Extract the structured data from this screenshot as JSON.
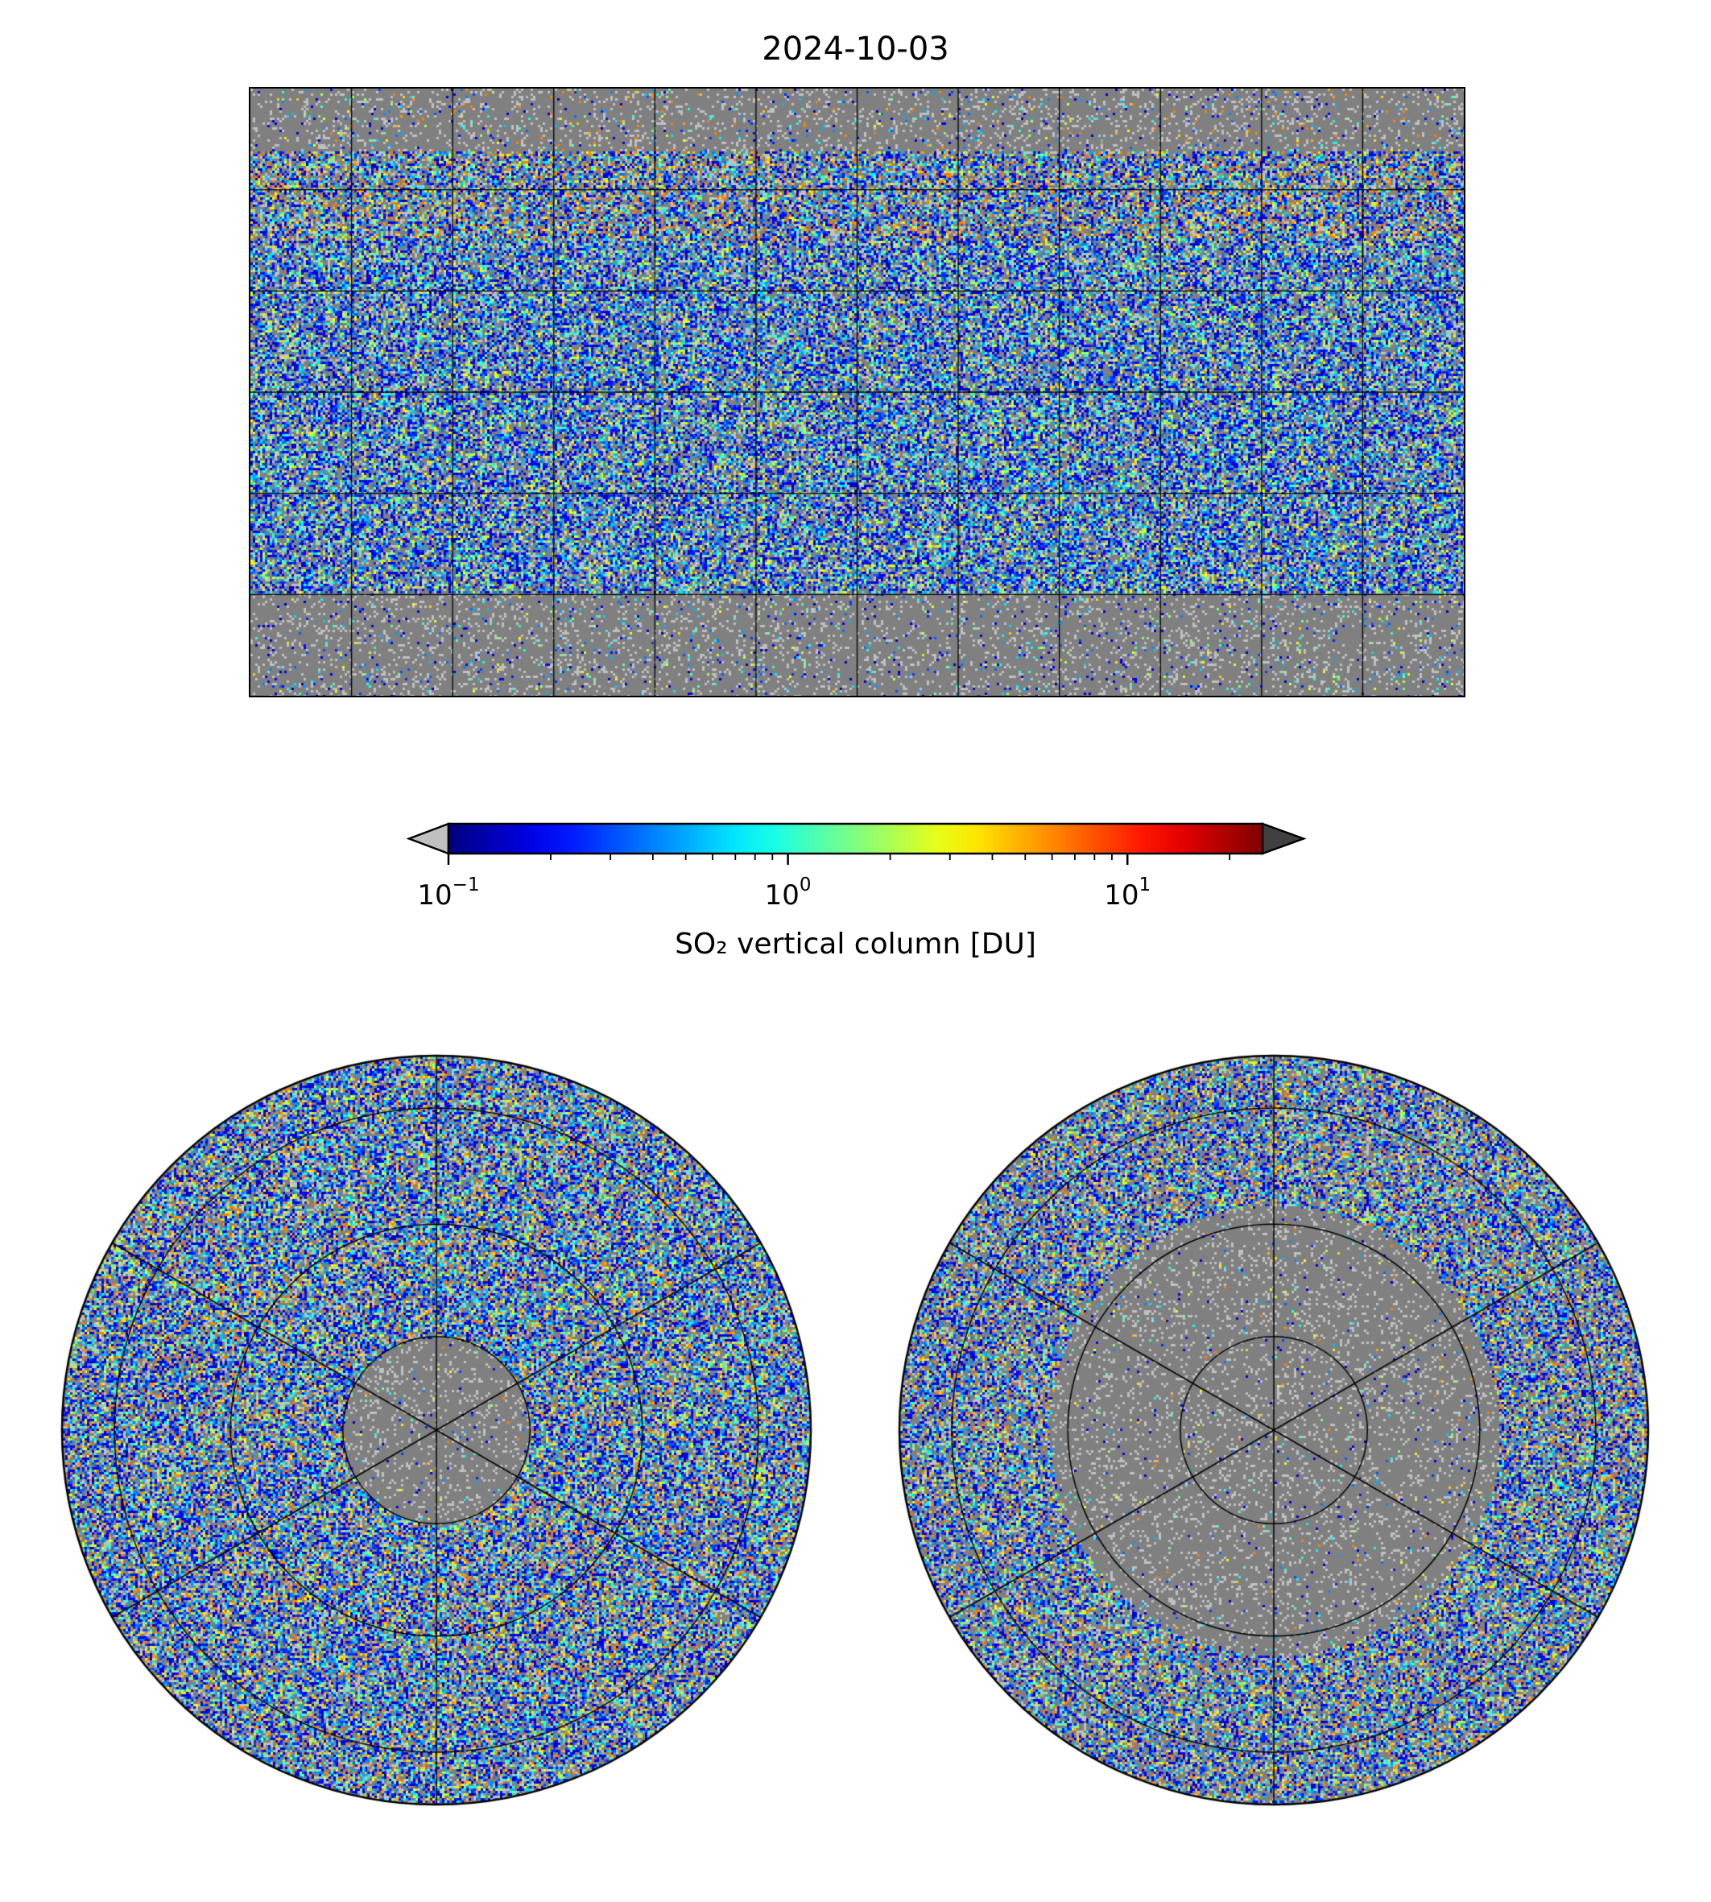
{
  "title": "2024-10-03",
  "colorbar": {
    "label": "SO₂ vertical column [DU]",
    "scale": "log",
    "range": [
      0.1,
      25
    ],
    "ticks": [
      {
        "base": "10",
        "exp": "−1",
        "value": 0.1
      },
      {
        "base": "10",
        "exp": "0",
        "value": 1
      },
      {
        "base": "10",
        "exp": "1",
        "value": 10
      }
    ],
    "under_color": "#c0c0c0",
    "over_color": "#404040",
    "colormap": "jet"
  },
  "maps": {
    "global": {
      "projection": "plate carree",
      "background": "#808080",
      "grid_lon_step": 30,
      "grid_lat_step": 30
    },
    "north_polar": {
      "projection": "north polar stereographic"
    },
    "south_polar": {
      "projection": "south polar stereographic"
    }
  }
}
